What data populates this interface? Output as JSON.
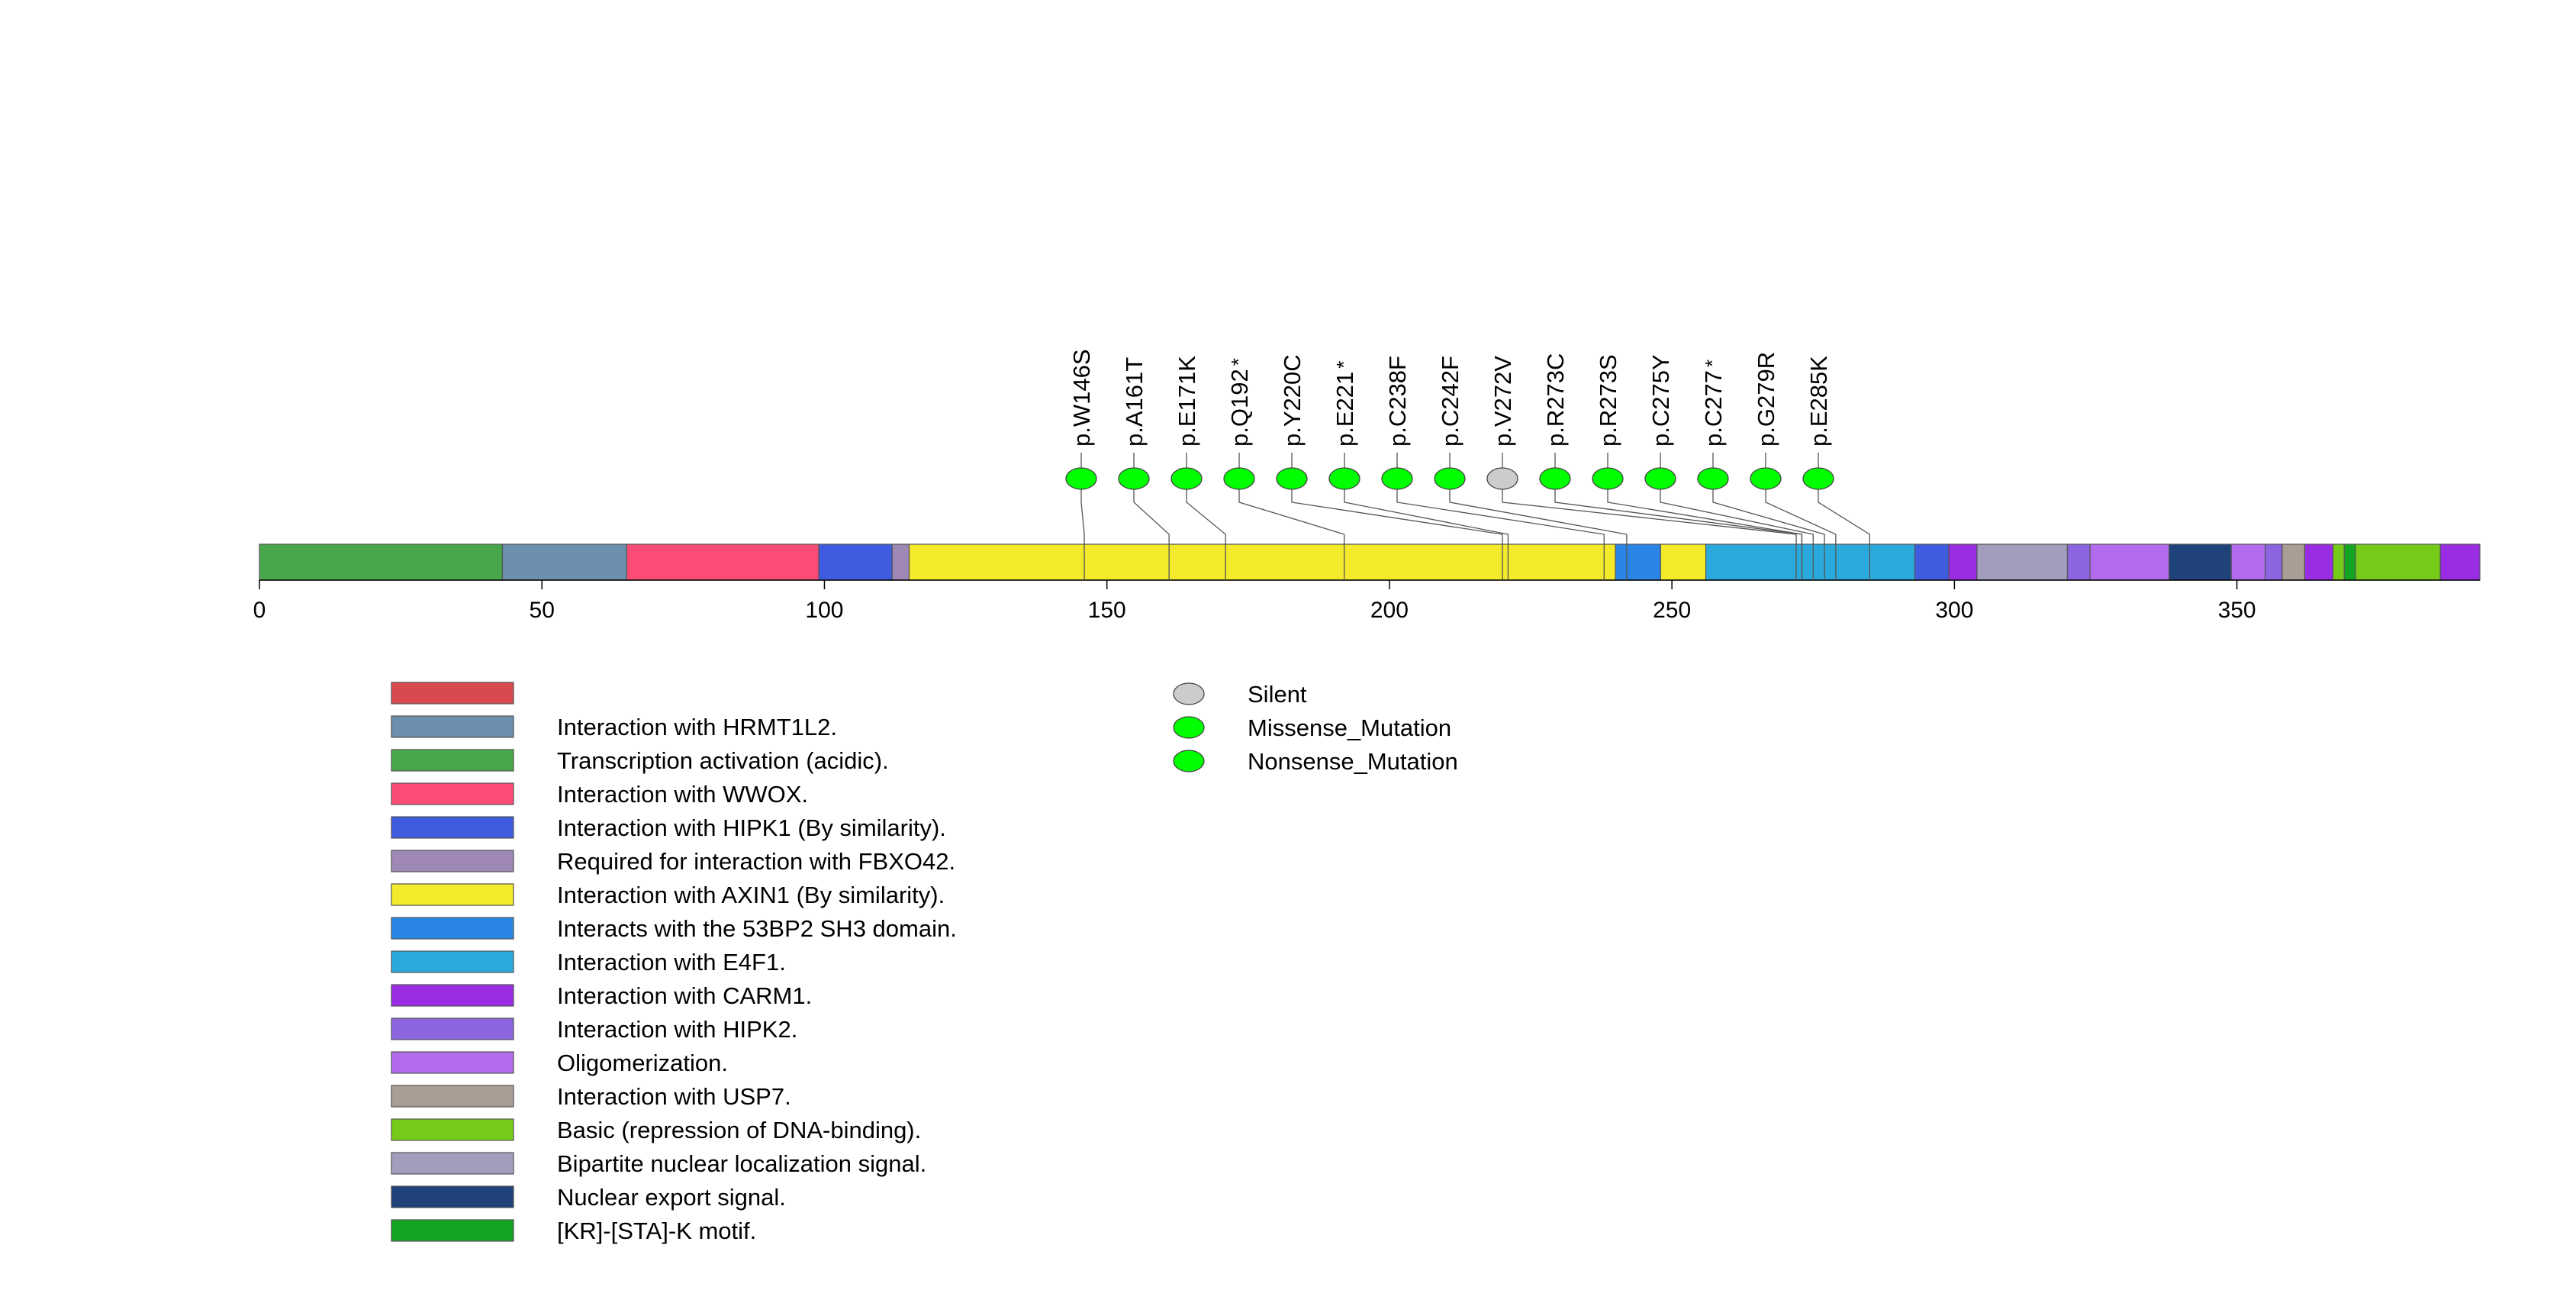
{
  "chart_data": {
    "type": "lollipop",
    "protein_length": 393,
    "axis": {
      "ticks": [
        0,
        50,
        100,
        150,
        200,
        250,
        300,
        350
      ],
      "tick_labels": [
        "0",
        "50",
        "100",
        "150",
        "200",
        "250",
        "300",
        "350"
      ]
    },
    "domains": [
      {
        "name": "Transcription activation (acidic).",
        "start": 0,
        "end": 43,
        "color": "#48a74a"
      },
      {
        "name": "Interaction with HRMT1L2.",
        "start": 43,
        "end": 65,
        "color": "#6b8fad"
      },
      {
        "name": "Interaction with WWOX.",
        "start": 65,
        "end": 99,
        "color": "#fb4c76"
      },
      {
        "name": "Interaction with HIPK1 (By similarity).",
        "start": 99,
        "end": 112,
        "color": "#3f5ce1"
      },
      {
        "name": "Required for interaction with FBXO42.",
        "start": 112,
        "end": 115,
        "color": "#9f88b5"
      },
      {
        "name": "Interaction with AXIN1 (By similarity).",
        "start": 115,
        "end": 240,
        "color": "#f2ea2a"
      },
      {
        "name": "Interacts with the 53BP2 SH3 domain.",
        "start": 240,
        "end": 248,
        "color": "#2a86e6"
      },
      {
        "name": "Interaction with AXIN1 (By similarity).",
        "start": 248,
        "end": 256,
        "color": "#f2ea2a"
      },
      {
        "name": "Interaction with E4F1.",
        "start": 256,
        "end": 293,
        "color": "#2aaadc"
      },
      {
        "name": "Interaction with HIPK1 (By similarity).",
        "start": 293,
        "end": 299,
        "color": "#3f5ce1"
      },
      {
        "name": "Interaction with CARM1.",
        "start": 299,
        "end": 304,
        "color": "#9a2de3"
      },
      {
        "name": "Bipartite nuclear localization signal.",
        "start": 304,
        "end": 320,
        "color": "#a39dbd"
      },
      {
        "name": "Interaction with HIPK2.",
        "start": 320,
        "end": 324,
        "color": "#8b66e0"
      },
      {
        "name": "Oligomerization.",
        "start": 324,
        "end": 338,
        "color": "#b36bed"
      },
      {
        "name": "Nuclear export signal.",
        "start": 338,
        "end": 349,
        "color": "#1f427a"
      },
      {
        "name": "Oligomerization.",
        "start": 349,
        "end": 355,
        "color": "#b36bed"
      },
      {
        "name": "Interaction with HIPK2.",
        "start": 355,
        "end": 358,
        "color": "#8b66e0"
      },
      {
        "name": "Interaction with USP7.",
        "start": 358,
        "end": 362,
        "color": "#a89e96"
      },
      {
        "name": "Interaction with CARM1.",
        "start": 362,
        "end": 367,
        "color": "#9a2de3"
      },
      {
        "name": "Basic (repression of DNA-binding).",
        "start": 367,
        "end": 369,
        "color": "#76cb1a"
      },
      {
        "name": "[KR]-[STA]-K motif.",
        "start": 369,
        "end": 371,
        "color": "#13a421"
      },
      {
        "name": "Basic (repression of DNA-binding).",
        "start": 371,
        "end": 386,
        "color": "#76cb1a"
      },
      {
        "name": "Interaction with CARM1.",
        "start": 386,
        "end": 393,
        "color": "#9a2de3"
      }
    ],
    "mutations": [
      {
        "label": "p.W146S",
        "position": 146,
        "type": "Missense_Mutation",
        "star": false
      },
      {
        "label": "p.A161T",
        "position": 161,
        "type": "Missense_Mutation",
        "star": false
      },
      {
        "label": "p.E171K",
        "position": 171,
        "type": "Missense_Mutation",
        "star": false
      },
      {
        "label": "p.Q192",
        "position": 192,
        "type": "Nonsense_Mutation",
        "star": true
      },
      {
        "label": "p.Y220C",
        "position": 220,
        "type": "Missense_Mutation",
        "star": false
      },
      {
        "label": "p.E221",
        "position": 221,
        "type": "Nonsense_Mutation",
        "star": true
      },
      {
        "label": "p.C238F",
        "position": 238,
        "type": "Missense_Mutation",
        "star": false
      },
      {
        "label": "p.C242F",
        "position": 242,
        "type": "Missense_Mutation",
        "star": false
      },
      {
        "label": "p.V272V",
        "position": 272,
        "type": "Silent",
        "star": false
      },
      {
        "label": "p.R273C",
        "position": 273,
        "type": "Missense_Mutation",
        "star": false
      },
      {
        "label": "p.R273S",
        "position": 273,
        "type": "Missense_Mutation",
        "star": false
      },
      {
        "label": "p.C275Y",
        "position": 275,
        "type": "Missense_Mutation",
        "star": false
      },
      {
        "label": "p.C277",
        "position": 277,
        "type": "Nonsense_Mutation",
        "star": true
      },
      {
        "label": "p.G279R",
        "position": 279,
        "type": "Missense_Mutation",
        "star": false
      },
      {
        "label": "p.E285K",
        "position": 285,
        "type": "Missense_Mutation",
        "star": false
      }
    ],
    "domain_legend": [
      {
        "label": "",
        "color": "#d84a4d"
      },
      {
        "label": "Interaction with HRMT1L2.",
        "color": "#6b8fad"
      },
      {
        "label": "Transcription activation (acidic).",
        "color": "#48a74a"
      },
      {
        "label": "Interaction with WWOX.",
        "color": "#fb4c76"
      },
      {
        "label": "Interaction with HIPK1 (By similarity).",
        "color": "#3f5ce1"
      },
      {
        "label": "Required for interaction with FBXO42.",
        "color": "#9f88b5"
      },
      {
        "label": "Interaction with AXIN1 (By similarity).",
        "color": "#f2ea2a"
      },
      {
        "label": "Interacts with the 53BP2 SH3 domain.",
        "color": "#2a86e6"
      },
      {
        "label": "Interaction with E4F1.",
        "color": "#2aaadc"
      },
      {
        "label": "Interaction with CARM1.",
        "color": "#9a2de3"
      },
      {
        "label": "Interaction with HIPK2.",
        "color": "#8b66e0"
      },
      {
        "label": "Oligomerization.",
        "color": "#b36bed"
      },
      {
        "label": "Interaction with USP7.",
        "color": "#a89e96"
      },
      {
        "label": "Basic (repression of DNA-binding).",
        "color": "#76cb1a"
      },
      {
        "label": "Bipartite nuclear localization signal.",
        "color": "#a39dbd"
      },
      {
        "label": "Nuclear export signal.",
        "color": "#1f427a"
      },
      {
        "label": "[KR]-[STA]-K motif.",
        "color": "#13a421"
      }
    ],
    "mutation_legend": [
      {
        "label": "Silent",
        "color": "#cccccc"
      },
      {
        "label": "Missense_Mutation",
        "color": "#00ff00"
      },
      {
        "label": "Nonsense_Mutation",
        "color": "#00ff00"
      }
    ],
    "mutation_colors": {
      "Silent": "#cccccc",
      "Missense_Mutation": "#00ff00",
      "Nonsense_Mutation": "#00ff00"
    },
    "star_symbol": "*"
  }
}
